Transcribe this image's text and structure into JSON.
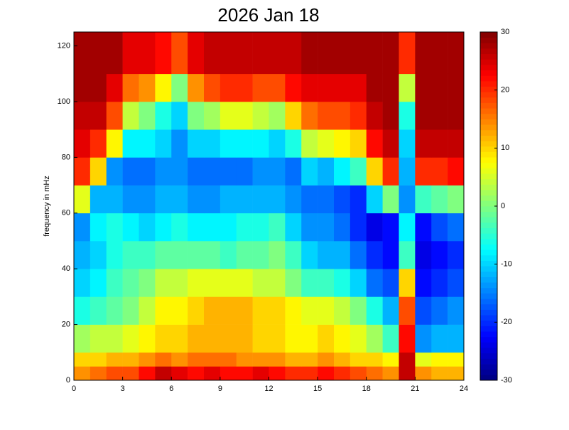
{
  "chart_data": {
    "type": "heatmap",
    "title": "2026 Jan 18",
    "ylabel": "frequency in mHz",
    "colormap": "jet",
    "xbins": [
      0,
      1,
      2,
      3,
      4,
      5,
      6,
      7,
      8,
      9,
      10,
      11,
      12,
      13,
      14,
      15,
      16,
      17,
      18,
      19,
      20,
      21,
      22,
      23,
      24
    ],
    "ybins": [
      0,
      5,
      10,
      20,
      30,
      40,
      50,
      60,
      70,
      80,
      90,
      100,
      110,
      125
    ],
    "z": [
      [
        14,
        16,
        18,
        18,
        22,
        26,
        24,
        22,
        24,
        22,
        22,
        24,
        22,
        20,
        20,
        22,
        20,
        18,
        16,
        14,
        26,
        14,
        12,
        12
      ],
      [
        10,
        10,
        12,
        12,
        14,
        16,
        14,
        16,
        16,
        16,
        14,
        14,
        14,
        12,
        12,
        14,
        12,
        10,
        10,
        8,
        26,
        6,
        8,
        8
      ],
      [
        2,
        4,
        4,
        6,
        8,
        10,
        10,
        12,
        12,
        12,
        12,
        10,
        10,
        8,
        8,
        10,
        8,
        6,
        2,
        -4,
        22,
        -14,
        -12,
        -12
      ],
      [
        -6,
        -4,
        -2,
        0,
        4,
        8,
        8,
        10,
        12,
        12,
        12,
        10,
        10,
        8,
        6,
        6,
        4,
        0,
        -6,
        -12,
        18,
        -18,
        -16,
        -14
      ],
      [
        -10,
        -8,
        -4,
        -2,
        0,
        4,
        4,
        6,
        6,
        6,
        6,
        4,
        4,
        0,
        -4,
        -4,
        -6,
        -10,
        -16,
        -18,
        10,
        -22,
        -20,
        -18
      ],
      [
        -12,
        -10,
        -6,
        -4,
        -4,
        -2,
        -2,
        -2,
        -2,
        -4,
        -2,
        -2,
        0,
        -4,
        -10,
        -12,
        -12,
        -16,
        -20,
        -22,
        -4,
        -24,
        -22,
        -20
      ],
      [
        -14,
        -8,
        -6,
        -8,
        -10,
        -8,
        -6,
        -8,
        -8,
        -8,
        -6,
        -6,
        -4,
        -10,
        -14,
        -14,
        -16,
        -20,
        -24,
        -22,
        -8,
        -22,
        -18,
        -16
      ],
      [
        6,
        -12,
        -12,
        -14,
        -14,
        -12,
        -12,
        -14,
        -14,
        -12,
        -12,
        -12,
        -12,
        -14,
        -16,
        -16,
        -18,
        -20,
        -10,
        0,
        -14,
        -4,
        -2,
        0
      ],
      [
        20,
        10,
        -14,
        -16,
        -16,
        -14,
        -14,
        -16,
        -16,
        -16,
        -16,
        -14,
        -14,
        -16,
        -10,
        -12,
        -8,
        -4,
        10,
        20,
        -12,
        20,
        20,
        22
      ],
      [
        24,
        20,
        8,
        -8,
        -8,
        -10,
        -14,
        -10,
        -10,
        -8,
        -8,
        -8,
        -10,
        -6,
        4,
        6,
        8,
        10,
        22,
        26,
        -10,
        26,
        26,
        26
      ],
      [
        26,
        26,
        18,
        4,
        0,
        -6,
        -10,
        0,
        2,
        6,
        6,
        4,
        2,
        10,
        16,
        18,
        18,
        20,
        26,
        28,
        -6,
        28,
        28,
        28
      ],
      [
        28,
        28,
        24,
        16,
        14,
        8,
        0,
        14,
        18,
        20,
        20,
        18,
        18,
        22,
        24,
        24,
        24,
        24,
        28,
        28,
        4,
        28,
        28,
        28
      ],
      [
        28,
        28,
        28,
        24,
        24,
        22,
        18,
        24,
        26,
        26,
        26,
        26,
        26,
        26,
        28,
        28,
        28,
        28,
        28,
        28,
        20,
        28,
        28,
        28
      ]
    ],
    "xlim": [
      0,
      24
    ],
    "xticks": [
      0,
      3,
      6,
      9,
      12,
      15,
      18,
      21,
      24
    ],
    "ylim": [
      0,
      125
    ],
    "yticks": [
      0,
      20,
      40,
      60,
      80,
      100,
      120
    ],
    "clim": [
      -30,
      30
    ],
    "cticks": [
      -30,
      -20,
      -10,
      0,
      10,
      20,
      30
    ]
  }
}
